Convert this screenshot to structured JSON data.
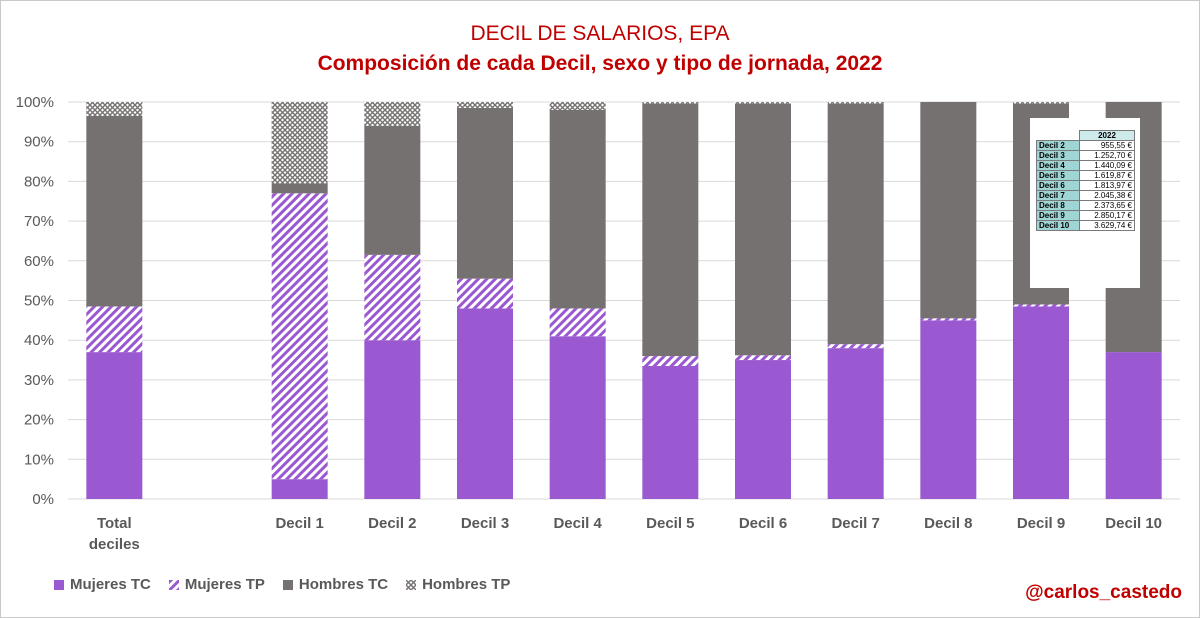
{
  "chart_data": {
    "type": "bar",
    "stacked": "percent",
    "title": "DECIL DE SALARIOS, EPA",
    "subtitle": "Composición de cada Decil, sexo y tipo de jornada, 2022",
    "categories": [
      "Total deciles",
      "",
      "Decil 1",
      "Decil 2",
      "Decil 3",
      "Decil 4",
      "Decil 5",
      "Decil 6",
      "Decil 7",
      "Decil 8",
      "Decil 9",
      "Decil 10"
    ],
    "y_ticks": [
      "0%",
      "10%",
      "20%",
      "30%",
      "40%",
      "50%",
      "60%",
      "70%",
      "80%",
      "90%",
      "100%"
    ],
    "ylim": [
      0,
      100
    ],
    "series": [
      {
        "name": "Mujeres TC",
        "color": "#9a59d0",
        "pattern": "solid",
        "values": [
          37,
          null,
          5,
          40,
          48,
          41,
          33.5,
          35,
          38,
          45,
          48.5,
          37
        ]
      },
      {
        "name": "Mujeres TP",
        "color": "#9a59d0",
        "pattern": "hatch",
        "values": [
          11.5,
          null,
          72,
          21.5,
          7.5,
          7,
          2.5,
          1.2,
          1,
          0.5,
          0.5,
          0
        ]
      },
      {
        "name": "Hombres TC",
        "color": "#767171",
        "pattern": "solid",
        "values": [
          48,
          null,
          2.5,
          32.5,
          43,
          50,
          63.5,
          63.3,
          60.5,
          54.5,
          50.5,
          63
        ]
      },
      {
        "name": "Hombres TP",
        "color": "#767171",
        "pattern": "hatch",
        "values": [
          3.5,
          null,
          20.5,
          6,
          1.5,
          2,
          0.5,
          0.5,
          0.5,
          0,
          0.5,
          0
        ]
      }
    ],
    "legend_position": "bottom-left"
  },
  "inset_table": {
    "header": "2022",
    "rows": [
      {
        "label": "Decil 2",
        "value": "955,55 €"
      },
      {
        "label": "Decil 3",
        "value": "1.252,70 €"
      },
      {
        "label": "Decil 4",
        "value": "1.440,09 €"
      },
      {
        "label": "Decil 5",
        "value": "1.619,87 €"
      },
      {
        "label": "Decil 6",
        "value": "1.813,97 €"
      },
      {
        "label": "Decil 7",
        "value": "2.045,38 €"
      },
      {
        "label": "Decil 8",
        "value": "2.373,65 €"
      },
      {
        "label": "Decil 9",
        "value": "2.850,17 €"
      },
      {
        "label": "Decil 10",
        "value": "3.629,74 €"
      }
    ]
  },
  "handle": "@carlos_castedo"
}
